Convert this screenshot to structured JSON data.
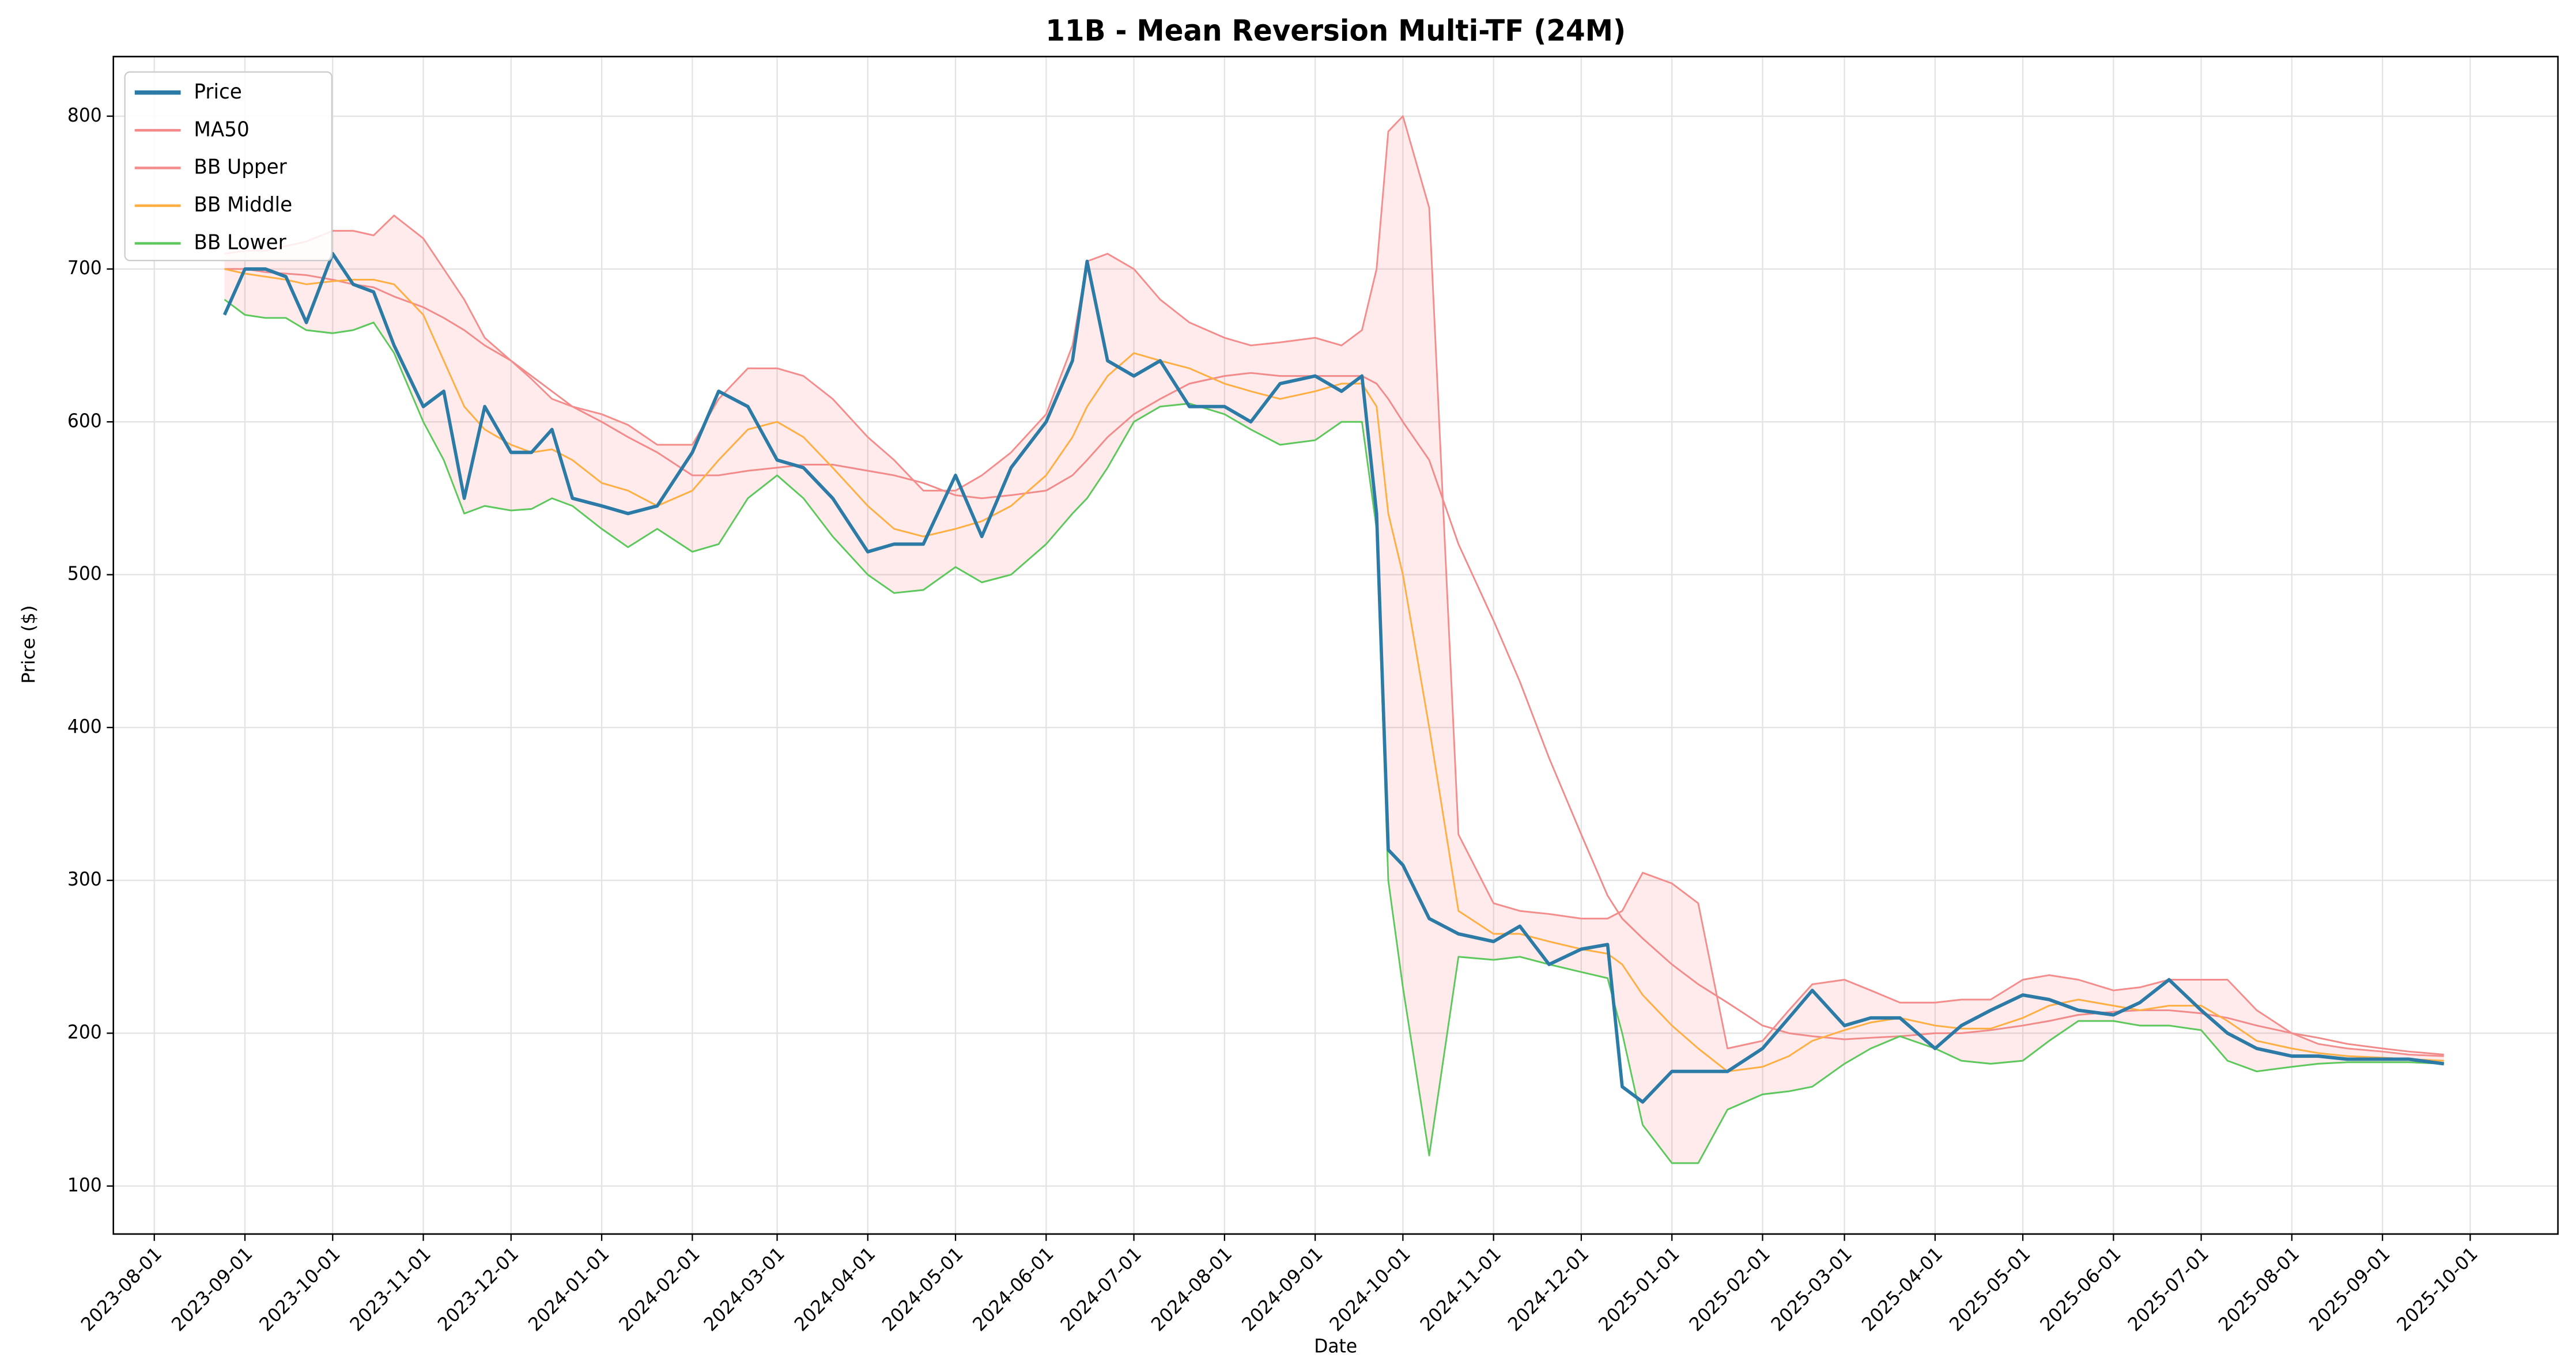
{
  "chart_data": {
    "type": "line",
    "title": "11B - Mean Reversion Multi-TF (24M)",
    "xlabel": "Date",
    "ylabel": "Price ($)",
    "x": [
      "2023-08-25",
      "2023-09-01",
      "2023-09-08",
      "2023-09-15",
      "2023-09-22",
      "2023-10-01",
      "2023-10-08",
      "2023-10-15",
      "2023-10-22",
      "2023-11-01",
      "2023-11-08",
      "2023-11-15",
      "2023-11-22",
      "2023-12-01",
      "2023-12-08",
      "2023-12-15",
      "2023-12-22",
      "2024-01-01",
      "2024-01-10",
      "2024-01-20",
      "2024-02-01",
      "2024-02-10",
      "2024-02-20",
      "2024-03-01",
      "2024-03-10",
      "2024-03-20",
      "2024-04-01",
      "2024-04-10",
      "2024-04-20",
      "2024-05-01",
      "2024-05-10",
      "2024-05-20",
      "2024-06-01",
      "2024-06-10",
      "2024-06-15",
      "2024-06-22",
      "2024-07-01",
      "2024-07-10",
      "2024-07-20",
      "2024-08-01",
      "2024-08-10",
      "2024-08-20",
      "2024-09-01",
      "2024-09-10",
      "2024-09-17",
      "2024-09-22",
      "2024-09-26",
      "2024-10-01",
      "2024-10-10",
      "2024-10-20",
      "2024-11-01",
      "2024-11-10",
      "2024-11-20",
      "2024-12-01",
      "2024-12-10",
      "2024-12-15",
      "2024-12-22",
      "2025-01-01",
      "2025-01-10",
      "2025-01-20",
      "2025-02-01",
      "2025-02-10",
      "2025-02-18",
      "2025-03-01",
      "2025-03-10",
      "2025-03-20",
      "2025-04-01",
      "2025-04-10",
      "2025-04-20",
      "2025-05-01",
      "2025-05-10",
      "2025-05-20",
      "2025-06-01",
      "2025-06-10",
      "2025-06-20",
      "2025-07-01",
      "2025-07-10",
      "2025-07-20",
      "2025-08-01",
      "2025-08-10",
      "2025-08-20",
      "2025-09-01",
      "2025-09-10",
      "2025-09-22"
    ],
    "series": [
      {
        "name": "Price",
        "color": "#2b7ba6",
        "width": 2,
        "values": [
          670,
          700,
          700,
          695,
          665,
          710,
          690,
          685,
          650,
          610,
          620,
          550,
          610,
          580,
          580,
          595,
          550,
          545,
          540,
          545,
          580,
          620,
          610,
          575,
          570,
          550,
          515,
          520,
          520,
          565,
          525,
          570,
          600,
          640,
          705,
          640,
          630,
          640,
          610,
          610,
          600,
          625,
          630,
          620,
          630,
          540,
          320,
          310,
          275,
          265,
          260,
          270,
          245,
          255,
          258,
          165,
          155,
          175,
          175,
          175,
          190,
          210,
          228,
          205,
          210,
          210,
          190,
          205,
          215,
          225,
          222,
          215,
          212,
          220,
          235,
          215,
          200,
          190,
          185,
          185,
          183,
          183,
          183,
          180
        ]
      },
      {
        "name": "MA50",
        "color": "#f28a8a",
        "width": 1,
        "values": [
          700,
          700,
          698,
          697,
          696,
          693,
          690,
          688,
          682,
          675,
          668,
          660,
          650,
          640,
          630,
          620,
          610,
          600,
          590,
          580,
          565,
          565,
          568,
          570,
          572,
          572,
          568,
          565,
          560,
          552,
          550,
          552,
          555,
          565,
          575,
          590,
          605,
          615,
          625,
          630,
          632,
          630,
          630,
          630,
          630,
          625,
          615,
          600,
          575,
          520,
          470,
          430,
          380,
          330,
          290,
          275,
          262,
          245,
          232,
          220,
          205,
          200,
          198,
          196,
          197,
          198,
          200,
          200,
          202,
          205,
          208,
          212,
          214,
          215,
          215,
          213,
          210,
          205,
          200,
          197,
          193,
          190,
          188,
          186
        ]
      },
      {
        "name": "BB Upper",
        "color": "#f58c8c",
        "width": 1,
        "values": [
          710,
          712,
          712,
          715,
          718,
          725,
          725,
          722,
          735,
          720,
          700,
          680,
          655,
          640,
          628,
          615,
          610,
          605,
          598,
          585,
          585,
          615,
          635,
          635,
          630,
          615,
          590,
          575,
          555,
          555,
          565,
          580,
          605,
          650,
          705,
          710,
          700,
          680,
          665,
          655,
          650,
          652,
          655,
          650,
          660,
          700,
          790,
          800,
          740,
          330,
          285,
          280,
          278,
          275,
          275,
          280,
          305,
          298,
          285,
          190,
          195,
          215,
          232,
          235,
          228,
          220,
          220,
          222,
          222,
          235,
          238,
          235,
          228,
          230,
          235,
          235,
          235,
          215,
          200,
          193,
          190,
          188,
          186,
          185
        ]
      },
      {
        "name": "BB Middle",
        "color": "#ffae42",
        "width": 1,
        "values": [
          700,
          697,
          695,
          693,
          690,
          692,
          693,
          693,
          690,
          670,
          640,
          610,
          595,
          585,
          580,
          582,
          575,
          560,
          555,
          545,
          555,
          575,
          595,
          600,
          590,
          570,
          545,
          530,
          525,
          530,
          535,
          545,
          565,
          590,
          610,
          630,
          645,
          640,
          635,
          625,
          620,
          615,
          620,
          625,
          625,
          610,
          540,
          500,
          400,
          280,
          265,
          265,
          260,
          255,
          252,
          245,
          225,
          205,
          190,
          175,
          178,
          185,
          195,
          202,
          207,
          210,
          205,
          203,
          203,
          210,
          218,
          222,
          218,
          215,
          218,
          218,
          208,
          195,
          190,
          187,
          185,
          184,
          183,
          182
        ]
      },
      {
        "name": "BB Lower",
        "color": "#5cc85c",
        "width": 1,
        "values": [
          680,
          670,
          668,
          668,
          660,
          658,
          660,
          665,
          645,
          600,
          575,
          540,
          545,
          542,
          543,
          550,
          545,
          530,
          518,
          530,
          515,
          520,
          550,
          565,
          550,
          525,
          500,
          488,
          490,
          505,
          495,
          500,
          520,
          540,
          550,
          570,
          600,
          610,
          612,
          605,
          595,
          585,
          588,
          600,
          600,
          530,
          300,
          230,
          120,
          250,
          248,
          250,
          245,
          240,
          236,
          200,
          140,
          115,
          115,
          150,
          160,
          162,
          165,
          180,
          190,
          198,
          190,
          182,
          180,
          182,
          195,
          208,
          208,
          205,
          205,
          202,
          182,
          175,
          178,
          180,
          181,
          181,
          181,
          180
        ]
      }
    ],
    "fill_between_color": "#ff0000",
    "xlim": [
      "2023-07-18",
      "2025-10-31"
    ],
    "xticks": [
      "2023-08-01",
      "2023-09-01",
      "2023-10-01",
      "2023-11-01",
      "2023-12-01",
      "2024-01-01",
      "2024-02-01",
      "2024-03-01",
      "2024-04-01",
      "2024-05-01",
      "2024-06-01",
      "2024-07-01",
      "2024-08-01",
      "2024-09-01",
      "2024-10-01",
      "2024-11-01",
      "2024-12-01",
      "2025-01-01",
      "2025-02-01",
      "2025-03-01",
      "2025-04-01",
      "2025-05-01",
      "2025-06-01",
      "2025-07-01",
      "2025-08-01",
      "2025-09-01",
      "2025-10-01"
    ],
    "ylim": [
      68.6,
      839
    ],
    "yticks": [
      100,
      200,
      300,
      400,
      500,
      600,
      700,
      800
    ],
    "grid": true,
    "legend": "upper left"
  }
}
